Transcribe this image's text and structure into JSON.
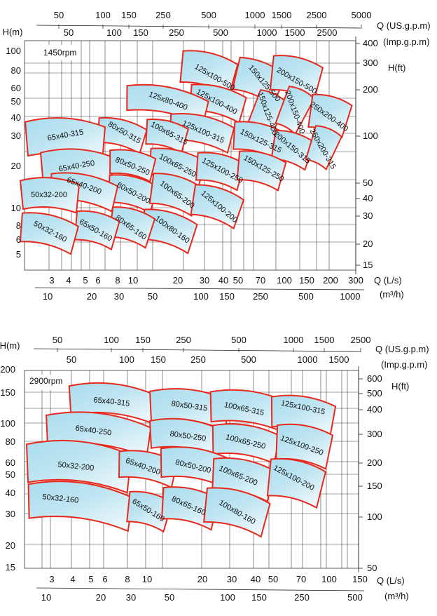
{
  "chart_data": [
    {
      "type": "pump-performance",
      "speed_label": "1450rpm",
      "y_label": "H(m)",
      "y_ticks": [
        "100",
        "80",
        "60",
        "50",
        "40",
        "30",
        "20",
        "10",
        "8",
        "6",
        "5"
      ],
      "y_right_label": "H(ft)",
      "y_right_ticks": [
        "400",
        "300",
        "200",
        "100",
        "50",
        "40",
        "30",
        "20",
        "15"
      ],
      "x_top_us_label": "Q (US.g.p.m)",
      "x_top_us_ticks": [
        "50",
        "100",
        "150",
        "250",
        "500",
        "1000",
        "1500",
        "2500",
        "5000"
      ],
      "x_top_imp_label": "(Imp.g.p.m)",
      "x_top_imp_ticks": [
        "50",
        "100",
        "150",
        "250",
        "500",
        "1000",
        "1500",
        "2500"
      ],
      "x_bottom_ls_label": "Q (L/s)",
      "x_bottom_ls_ticks": [
        "3",
        "4",
        "5",
        "6",
        "8",
        "10",
        "20",
        "30",
        "40",
        "50",
        "70",
        "100",
        "150",
        "200",
        "300"
      ],
      "x_bottom_m3h_label": "(m³/h)",
      "x_bottom_m3h_ticks": [
        "10",
        "20",
        "30",
        "50",
        "100",
        "150",
        "250",
        "500",
        "1000"
      ],
      "pumps": [
        "125x100-500",
        "150x125-500",
        "200x150-500",
        "125x100-400",
        "150x125-400",
        "200x150-400",
        "250x200-400",
        "125x80-400",
        "125x100-315",
        "150x125-315",
        "200x150-315",
        "250x200-315",
        "80x50-315",
        "100x65-315",
        "65x40-315",
        "100x65-250",
        "125x100-250",
        "150x125-250",
        "65x40-250",
        "80x50-250",
        "80x50-200",
        "100x65-200",
        "125x100-200",
        "65x40-200",
        "100x80-160",
        "80x65-160",
        "65x50-160",
        "50x32-200",
        "50x32-160"
      ]
    },
    {
      "type": "pump-performance",
      "speed_label": "2900rpm",
      "y_label": "H(m)",
      "y_ticks": [
        "200",
        "150",
        "100",
        "80",
        "60",
        "50",
        "40",
        "30",
        "20",
        "15"
      ],
      "y_right_label": "H(ft)",
      "y_right_ticks": [
        "600",
        "500",
        "400",
        "300",
        "200",
        "150",
        "100",
        "50"
      ],
      "x_top_us_label": "Q (US.g.p.m)",
      "x_top_us_ticks": [
        "50",
        "100",
        "150",
        "250",
        "500",
        "1000",
        "1500",
        "2500"
      ],
      "x_top_imp_label": "(Imp.g.p.m)",
      "x_top_imp_ticks": [
        "50",
        "100",
        "150",
        "250",
        "500",
        "1000",
        "1500"
      ],
      "x_bottom_ls_label": "Q (L/s)",
      "x_bottom_ls_ticks": [
        "3",
        "4",
        "5",
        "6",
        "8",
        "10",
        "20",
        "30",
        "40",
        "50",
        "70",
        "100",
        "150"
      ],
      "x_bottom_m3h_label": "(m³/h)",
      "x_bottom_m3h_ticks": [
        "10",
        "20",
        "30",
        "50",
        "100",
        "150",
        "250",
        "500"
      ],
      "pumps": [
        "65x40-315",
        "80x50-315",
        "100x65-315",
        "125x100-315",
        "65x40-250",
        "80x50-250",
        "100x65-250",
        "125x100-250",
        "50x32-200",
        "65x40-200",
        "80x50-200",
        "100x65-200",
        "125x100-200",
        "50x32-160",
        "65x50-160",
        "80x65-160",
        "100x80-160"
      ]
    }
  ]
}
